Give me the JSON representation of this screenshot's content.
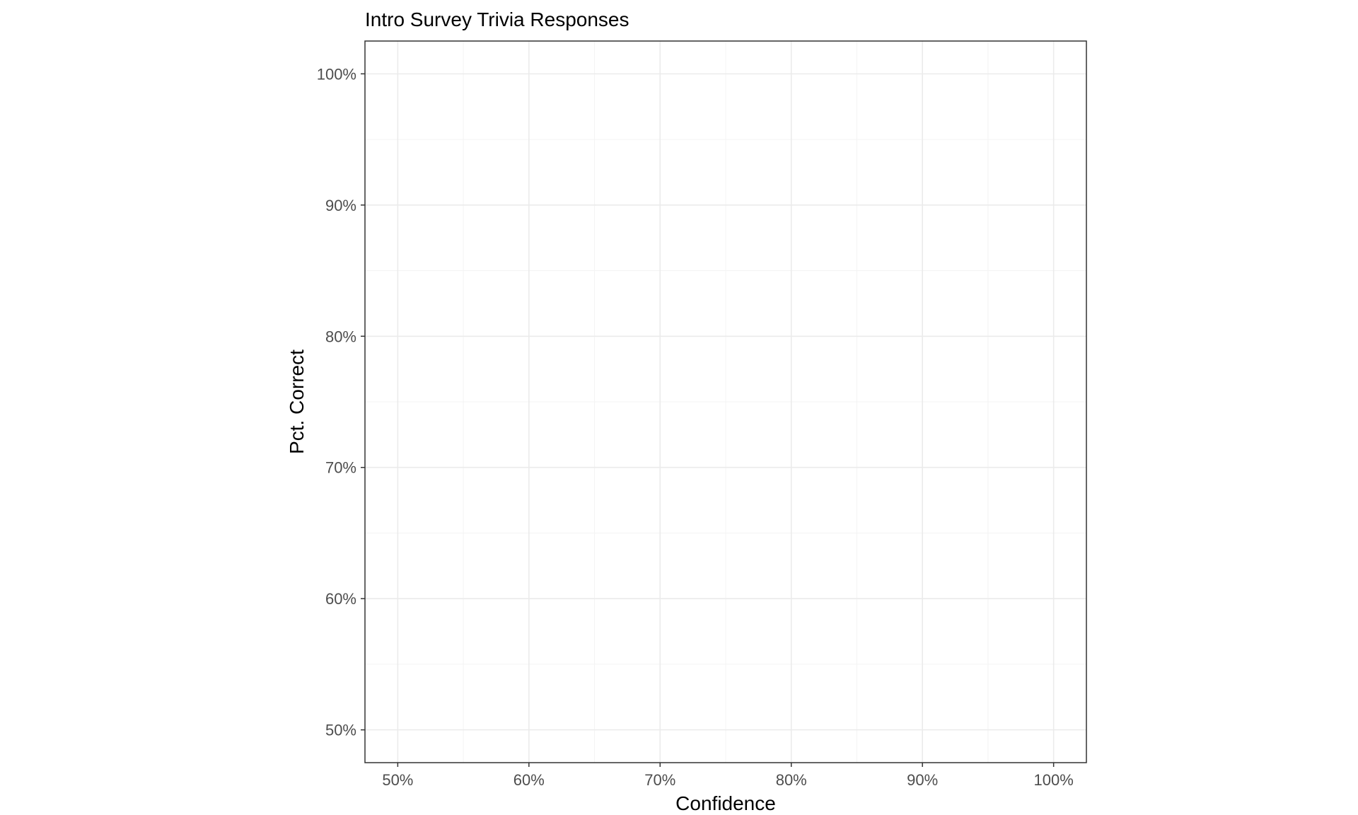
{
  "chart_data": {
    "type": "scatter",
    "title": "Intro Survey Trivia Responses",
    "xlabel": "Confidence",
    "ylabel": "Pct. Correct",
    "xlim": [
      0.475,
      1.025
    ],
    "ylim": [
      0.475,
      1.025
    ],
    "x_ticks": [
      0.5,
      0.6,
      0.7,
      0.8,
      0.9,
      1.0
    ],
    "x_tick_labels": [
      "50%",
      "60%",
      "70%",
      "80%",
      "90%",
      "100%"
    ],
    "y_ticks": [
      0.5,
      0.6,
      0.7,
      0.8,
      0.9,
      1.0
    ],
    "y_tick_labels": [
      "50%",
      "60%",
      "70%",
      "80%",
      "90%",
      "100%"
    ],
    "x_minor_ticks": [
      0.55,
      0.65,
      0.75,
      0.85,
      0.95
    ],
    "y_minor_ticks": [
      0.55,
      0.65,
      0.75,
      0.85,
      0.95
    ],
    "grid": true,
    "series": [],
    "colors": {
      "panel_border": "#333333",
      "grid_major": "#ebebeb",
      "grid_minor": "#f4f4f4",
      "tick_label": "#4d4d4d",
      "text": "#000000"
    }
  }
}
